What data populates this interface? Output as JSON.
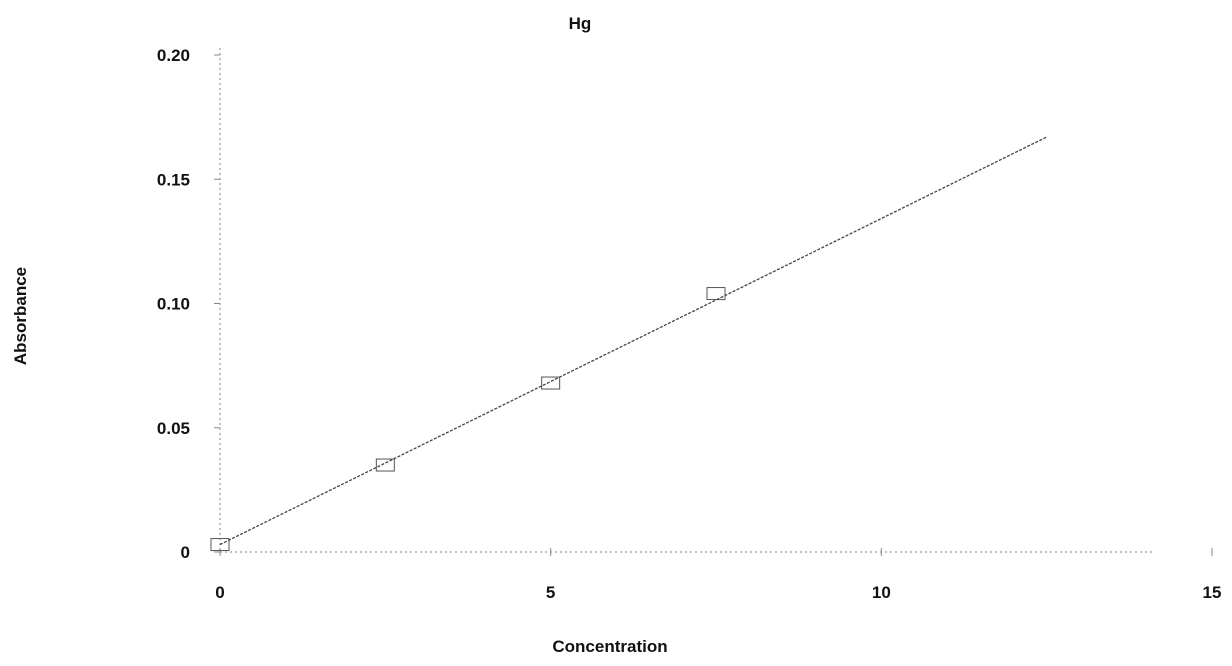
{
  "chart_data": {
    "type": "scatter",
    "title": "Hg",
    "xlabel": "Concentration",
    "ylabel": "Absorbance",
    "xlim": [
      0,
      15
    ],
    "ylim": [
      0,
      0.2
    ],
    "x_ticks": [
      0,
      5,
      10,
      15
    ],
    "x_tick_labels": [
      "0",
      "5",
      "10",
      "15"
    ],
    "y_ticks": [
      0,
      0.05,
      0.1,
      0.15,
      0.2
    ],
    "y_tick_labels": [
      "0",
      "0.05",
      "0.10",
      "0.15",
      "0.20"
    ],
    "grid": false,
    "series": [
      {
        "kind": "points",
        "x": [
          0,
          2.5,
          5,
          7.5
        ],
        "y": [
          0.003,
          0.035,
          0.068,
          0.104
        ]
      },
      {
        "kind": "fit-line",
        "x": [
          0,
          12.5
        ],
        "y": [
          0.003,
          0.167
        ]
      }
    ]
  }
}
